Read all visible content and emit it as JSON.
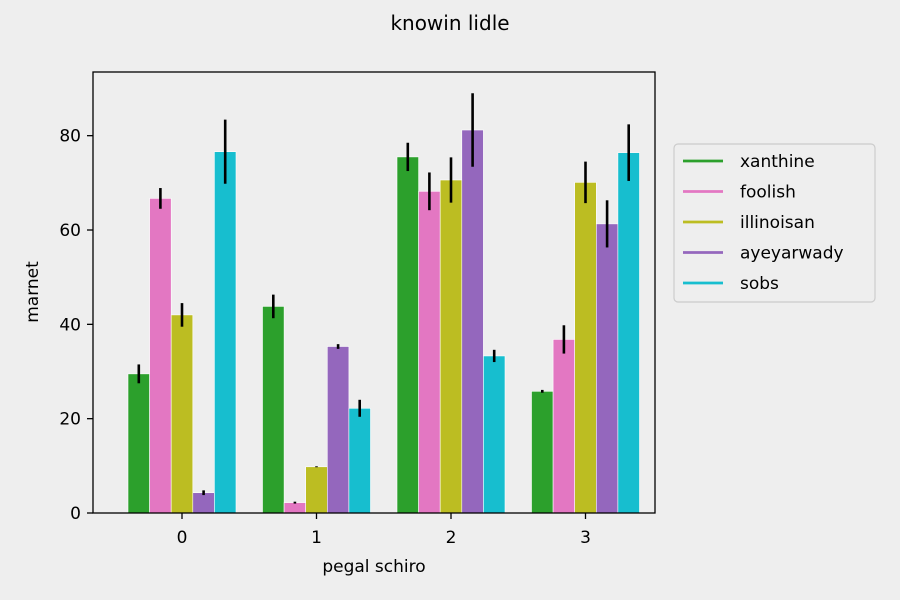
{
  "chart_data": {
    "type": "bar",
    "title": "knowin lidle",
    "xlabel": "pegal schiro",
    "ylabel": "marnet",
    "categories": [
      "0",
      "1",
      "2",
      "3"
    ],
    "ylim": [
      0,
      93.5
    ],
    "yticks": [
      0,
      20,
      40,
      60,
      80
    ],
    "grid": false,
    "legend_position": "right",
    "series": [
      {
        "name": "xanthine",
        "color": "#2ca02c",
        "values": [
          29.5,
          43.8,
          75.5,
          25.8
        ],
        "errors": [
          2.0,
          2.5,
          3.0,
          0.3
        ]
      },
      {
        "name": "foolish",
        "color": "#e377c2",
        "values": [
          66.7,
          2.2,
          68.2,
          36.8
        ],
        "errors": [
          2.2,
          0.2,
          4.0,
          3.0
        ]
      },
      {
        "name": "illinoisan",
        "color": "#bcbd22",
        "values": [
          42.0,
          9.8,
          70.6,
          70.1
        ],
        "errors": [
          2.5,
          0.1,
          4.8,
          4.4
        ]
      },
      {
        "name": "ayeyarwady",
        "color": "#9467bd",
        "values": [
          4.3,
          35.3,
          81.2,
          61.3
        ],
        "errors": [
          0.5,
          0.5,
          7.8,
          5.0
        ]
      },
      {
        "name": "sobs",
        "color": "#17becf",
        "values": [
          76.6,
          22.2,
          33.3,
          76.4
        ],
        "errors": [
          6.8,
          1.8,
          1.3,
          6.0
        ]
      }
    ]
  }
}
